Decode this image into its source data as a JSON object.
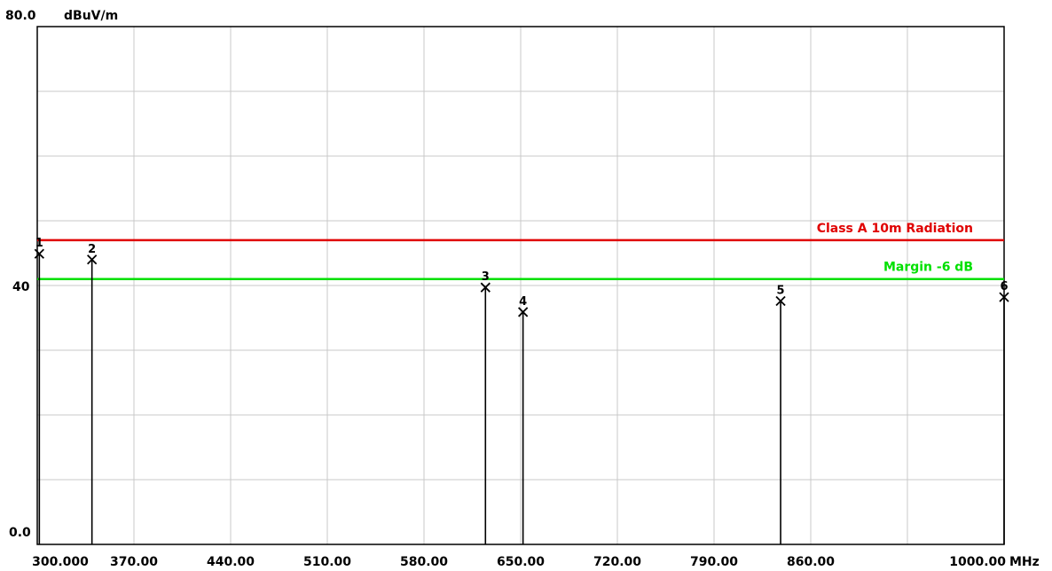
{
  "chart_data": {
    "type": "scatter",
    "y_unit": "dBuV/m",
    "x_unit": "MHz",
    "y_top_label": "80.0",
    "y_mid_label": "40",
    "y_bottom_label": "0.0",
    "ylim": [
      0,
      80
    ],
    "xlim": [
      300,
      1000
    ],
    "x_tick_values": [
      300,
      370,
      440,
      510,
      580,
      650,
      720,
      790,
      860,
      1000
    ],
    "x_tick_labels": [
      "300.000",
      "370.00",
      "440.00",
      "510.00",
      "580.00",
      "650.00",
      "720.00",
      "790.00",
      "860.00",
      "1000.00"
    ],
    "grid": true,
    "limit_lines": [
      {
        "name": "Class A 10m Radiation",
        "value": 47,
        "color": "#e00000"
      },
      {
        "name": "Margin -6 dB",
        "value": 41,
        "color": "#00e000"
      }
    ],
    "markers": [
      {
        "label": "1",
        "x": 301.5,
        "y": 44.9
      },
      {
        "label": "2",
        "x": 339.6,
        "y": 44.0
      },
      {
        "label": "3",
        "x": 624.5,
        "y": 39.7
      },
      {
        "label": "4",
        "x": 651.7,
        "y": 35.9
      },
      {
        "label": "5",
        "x": 838.2,
        "y": 37.6
      },
      {
        "label": "6",
        "x": 1000.0,
        "y": 38.2
      }
    ]
  }
}
